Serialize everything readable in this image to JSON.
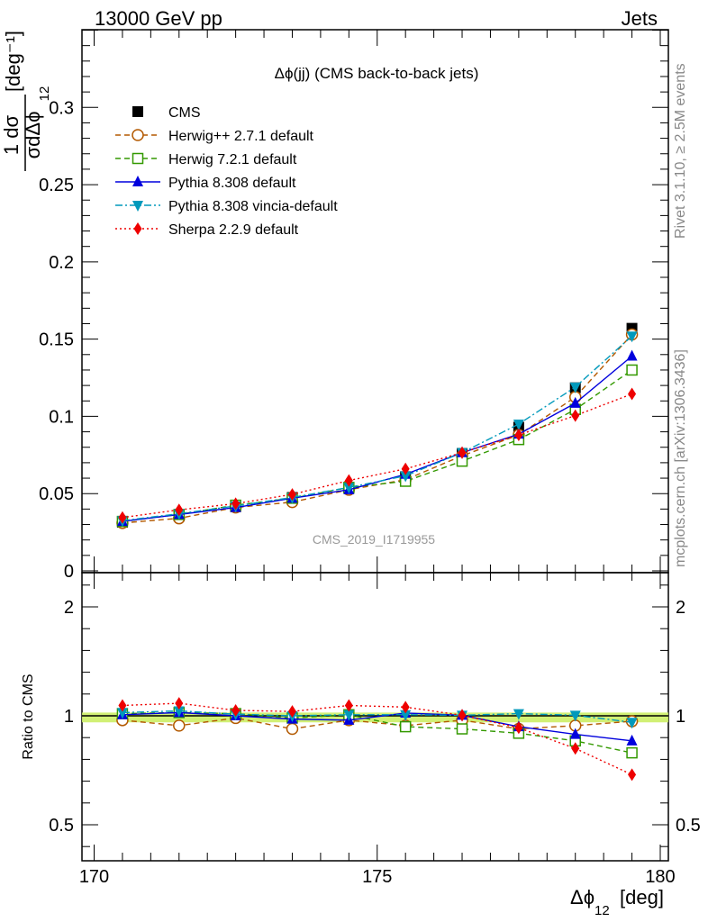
{
  "header": {
    "left": "13000 GeV pp",
    "right": "Jets"
  },
  "side_labels": {
    "rivet": "Rivet 3.1.10, ≥ 2.5M events",
    "mcplots": "mcplots.cern.ch [arXiv:1306.3436]"
  },
  "watermark": "CMS_2019_I1719955",
  "chart_data": [
    {
      "type": "scatter",
      "title": "Δϕ(jj) (CMS back-to-back jets)",
      "ylabel": "1/σ dσ/dΔϕ12 [deg⁻¹]",
      "ylim": [
        0,
        0.35
      ],
      "xlim": [
        170,
        180
      ],
      "yticks": [
        0,
        0.05,
        0.1,
        0.15,
        0.2,
        0.25,
        0.3
      ],
      "ytick_labels": [
        "0",
        "0.05",
        "0.1",
        "0.15",
        "0.2",
        "0.25",
        "0.3"
      ],
      "legend_placement": "top-left",
      "x": [
        170.5,
        171.5,
        172.5,
        173.5,
        174.5,
        175.5,
        176.5,
        177.5,
        178.5,
        179.5
      ],
      "series": [
        {
          "name": "CMS",
          "color": "#000000",
          "marker": "square-filled",
          "line": "none",
          "values": [
            0.0315,
            0.0355,
            0.0415,
            0.0475,
            0.0535,
            0.061,
            0.076,
            0.093,
            0.1185,
            0.157
          ]
        },
        {
          "name": "Herwig++ 2.7.1 default",
          "color": "#b35900",
          "marker": "circle-open",
          "line": "dashed",
          "values": [
            0.031,
            0.034,
            0.041,
            0.0445,
            0.0525,
            0.059,
            0.0745,
            0.088,
            0.1125,
            0.153
          ]
        },
        {
          "name": "Herwig 7.2.1 default",
          "color": "#339900",
          "marker": "square-open",
          "line": "dashed",
          "values": [
            0.032,
            0.0365,
            0.0425,
            0.047,
            0.054,
            0.058,
            0.071,
            0.085,
            0.1045,
            0.13
          ]
        },
        {
          "name": "Pythia 8.308 default",
          "color": "#0000dd",
          "marker": "triangle-up",
          "line": "solid",
          "values": [
            0.032,
            0.0365,
            0.041,
            0.047,
            0.0525,
            0.0625,
            0.0765,
            0.0885,
            0.1085,
            0.139
          ]
        },
        {
          "name": "Pythia 8.308 vincia-default",
          "color": "#0099bb",
          "marker": "triangle-down",
          "line": "dashdot",
          "values": [
            0.0325,
            0.037,
            0.042,
            0.0475,
            0.054,
            0.0615,
            0.0765,
            0.095,
            0.119,
            0.152
          ]
        },
        {
          "name": "Sherpa 2.2.9 default",
          "color": "#ee0000",
          "marker": "diamond",
          "line": "dotted",
          "values": [
            0.0345,
            0.0395,
            0.0435,
            0.0495,
            0.0585,
            0.066,
            0.0765,
            0.088,
            0.1005,
            0.1145
          ]
        }
      ]
    },
    {
      "type": "scatter",
      "ylabel": "Ratio to CMS",
      "xlabel": "Δϕ12 [deg]",
      "xlim": [
        170,
        180
      ],
      "ylim": [
        0.3,
        2.3
      ],
      "yticks": [
        0.5,
        1,
        2
      ],
      "ytick_labels": [
        "0.5",
        "1",
        "2"
      ],
      "xticks": [
        170,
        175,
        180
      ],
      "xtick_labels": [
        "170",
        "175",
        "180"
      ],
      "band": {
        "color": "#ccee66",
        "low": 0.97,
        "high": 1.03
      },
      "x": [
        170.5,
        171.5,
        172.5,
        173.5,
        174.5,
        175.5,
        176.5,
        177.5,
        178.5,
        179.5
      ],
      "series": [
        {
          "name": "Herwig++ 2.7.1 default",
          "color": "#b35900",
          "marker": "circle-open",
          "line": "dashed",
          "values": [
            0.98,
            0.955,
            0.99,
            0.94,
            0.98,
            0.955,
            0.98,
            0.94,
            0.955,
            0.975
          ]
        },
        {
          "name": "Herwig 7.2.1 default",
          "color": "#339900",
          "marker": "square-open",
          "line": "dashed",
          "values": [
            1.02,
            1.03,
            1.02,
            0.99,
            1.01,
            0.95,
            0.94,
            0.92,
            0.885,
            0.83
          ]
        },
        {
          "name": "Pythia 8.308 default",
          "color": "#0000dd",
          "marker": "triangle-up",
          "line": "solid",
          "values": [
            1.01,
            1.03,
            1.0,
            0.985,
            0.98,
            1.025,
            1.005,
            0.95,
            0.915,
            0.885
          ]
        },
        {
          "name": "Pythia 8.308 vincia-default",
          "color": "#0099bb",
          "marker": "triangle-down",
          "line": "dashdot",
          "values": [
            1.03,
            1.045,
            1.015,
            1.0,
            1.01,
            1.01,
            1.005,
            1.02,
            1.005,
            0.97
          ]
        },
        {
          "name": "Sherpa 2.2.9 default",
          "color": "#ee0000",
          "marker": "diamond",
          "line": "dotted",
          "values": [
            1.095,
            1.115,
            1.05,
            1.04,
            1.095,
            1.08,
            1.005,
            0.945,
            0.85,
            0.73
          ]
        }
      ]
    }
  ]
}
